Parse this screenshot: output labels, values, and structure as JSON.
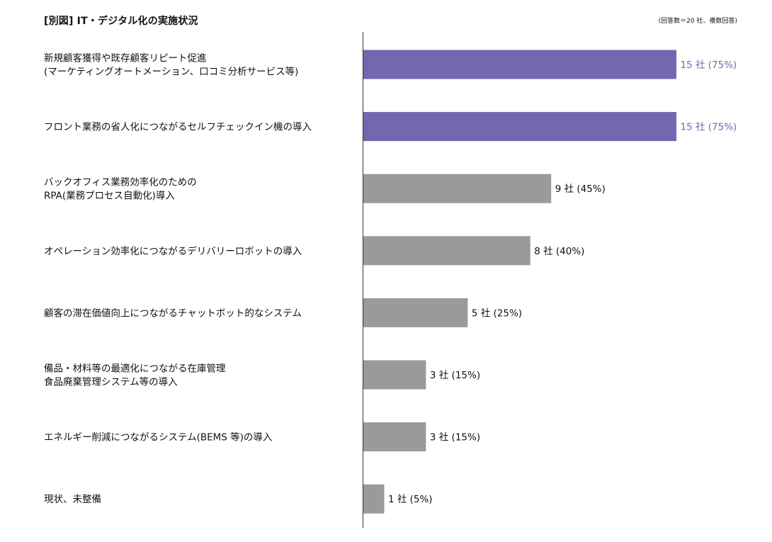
{
  "title": "[別図] IT・デジタル化の実施状況",
  "note": "(回答数＝20 社、複数回答)",
  "colors": {
    "highlight": "#7367af",
    "default": "#9a9a9a",
    "axis": "#333333",
    "label_default": "#111111"
  },
  "chart_data": {
    "type": "bar",
    "orientation": "horizontal",
    "categories": [
      [
        "新規顧客獲得や既存顧客リピート促進",
        "(マーケティングオートメーション、口コミ分析サービス等)"
      ],
      [
        "フロント業務の省人化につながるセルフチェックイン機の導入"
      ],
      [
        "バックオフィス業務効率化のための",
        "RPA(業務プロセス自動化)導入"
      ],
      [
        "オペレーション効率化につながるデリバリーロボットの導入"
      ],
      [
        "顧客の滞在価値向上につながるチャットボット的なシステム"
      ],
      [
        "備品・材料等の最適化につながる在庫管理",
        "食品廃棄管理システム等の導入"
      ],
      [
        "エネルギー削減につながるシステム(BEMS 等)の導入"
      ],
      [
        "現状、未整備"
      ]
    ],
    "values": [
      15,
      15,
      9,
      8,
      5,
      3,
      3,
      1
    ],
    "percent": [
      75,
      75,
      45,
      40,
      25,
      15,
      15,
      5
    ],
    "value_labels": [
      "15 社 (75%)",
      "15 社 (75%)",
      "9 社 (45%)",
      "8 社 (40%)",
      "5 社 (25%)",
      "3 社 (15%)",
      "3 社 (15%)",
      "1 社 (5%)"
    ],
    "highlighted": [
      true,
      true,
      false,
      false,
      false,
      false,
      false,
      false
    ],
    "xlim": [
      0,
      15
    ],
    "grid": false,
    "xlabel": "",
    "ylabel": ""
  }
}
